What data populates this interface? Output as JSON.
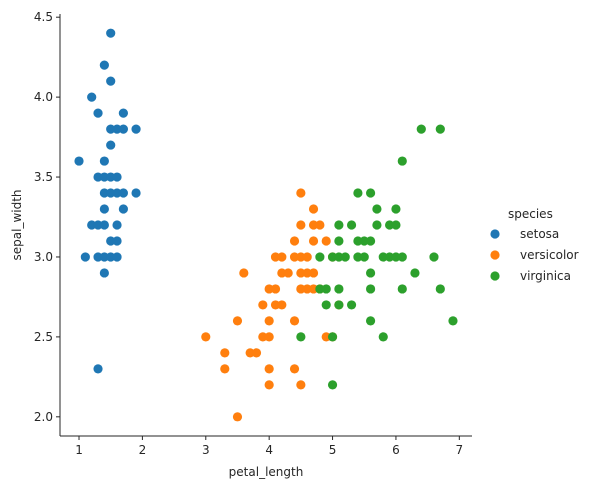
{
  "chart_data": {
    "type": "scatter",
    "xlabel": "petal_length",
    "ylabel": "sepal_width",
    "xlim": [
      0.7,
      7.2
    ],
    "ylim": [
      1.88,
      4.52
    ],
    "xticks": [
      1,
      2,
      3,
      4,
      5,
      6,
      7
    ],
    "yticks": [
      2.0,
      2.5,
      3.0,
      3.5,
      4.0,
      4.5
    ],
    "legend": {
      "title": "species",
      "position": "right"
    },
    "series": [
      {
        "name": "setosa",
        "color": "#1f77b4",
        "points": [
          [
            1.0,
            3.6
          ],
          [
            1.1,
            3.0
          ],
          [
            1.2,
            3.2
          ],
          [
            1.2,
            4.0
          ],
          [
            1.3,
            3.0
          ],
          [
            1.3,
            3.2
          ],
          [
            1.3,
            3.5
          ],
          [
            1.3,
            3.9
          ],
          [
            1.3,
            2.3
          ],
          [
            1.4,
            3.0
          ],
          [
            1.4,
            3.2
          ],
          [
            1.4,
            3.4
          ],
          [
            1.4,
            3.5
          ],
          [
            1.4,
            3.6
          ],
          [
            1.4,
            4.2
          ],
          [
            1.4,
            2.9
          ],
          [
            1.4,
            3.3
          ],
          [
            1.5,
            3.1
          ],
          [
            1.5,
            3.4
          ],
          [
            1.5,
            3.5
          ],
          [
            1.5,
            3.7
          ],
          [
            1.5,
            3.8
          ],
          [
            1.5,
            4.1
          ],
          [
            1.5,
            4.4
          ],
          [
            1.5,
            3.0
          ],
          [
            1.6,
            3.1
          ],
          [
            1.6,
            3.2
          ],
          [
            1.6,
            3.4
          ],
          [
            1.6,
            3.5
          ],
          [
            1.6,
            3.8
          ],
          [
            1.6,
            3.0
          ],
          [
            1.7,
            3.3
          ],
          [
            1.7,
            3.4
          ],
          [
            1.7,
            3.8
          ],
          [
            1.7,
            3.9
          ],
          [
            1.9,
            3.4
          ],
          [
            1.9,
            3.8
          ]
        ]
      },
      {
        "name": "versicolor",
        "color": "#ff7f0e",
        "points": [
          [
            3.0,
            2.5
          ],
          [
            3.3,
            2.3
          ],
          [
            3.3,
            2.4
          ],
          [
            3.5,
            2.0
          ],
          [
            3.5,
            2.6
          ],
          [
            3.6,
            2.9
          ],
          [
            3.7,
            2.4
          ],
          [
            3.8,
            2.4
          ],
          [
            3.9,
            2.5
          ],
          [
            3.9,
            2.7
          ],
          [
            4.0,
            2.2
          ],
          [
            4.0,
            2.3
          ],
          [
            4.0,
            2.5
          ],
          [
            4.0,
            2.6
          ],
          [
            4.0,
            2.8
          ],
          [
            4.1,
            2.7
          ],
          [
            4.1,
            2.8
          ],
          [
            4.1,
            3.0
          ],
          [
            4.2,
            2.7
          ],
          [
            4.2,
            2.9
          ],
          [
            4.2,
            3.0
          ],
          [
            4.3,
            2.9
          ],
          [
            4.4,
            2.3
          ],
          [
            4.4,
            2.6
          ],
          [
            4.4,
            3.0
          ],
          [
            4.4,
            3.1
          ],
          [
            4.5,
            2.2
          ],
          [
            4.5,
            2.8
          ],
          [
            4.5,
            2.9
          ],
          [
            4.5,
            3.0
          ],
          [
            4.5,
            3.2
          ],
          [
            4.5,
            3.4
          ],
          [
            4.6,
            2.8
          ],
          [
            4.6,
            2.9
          ],
          [
            4.6,
            3.0
          ],
          [
            4.7,
            2.8
          ],
          [
            4.7,
            2.9
          ],
          [
            4.7,
            3.1
          ],
          [
            4.7,
            3.2
          ],
          [
            4.7,
            3.3
          ],
          [
            4.8,
            2.8
          ],
          [
            4.8,
            3.2
          ],
          [
            4.9,
            2.5
          ],
          [
            4.9,
            3.1
          ],
          [
            5.0,
            2.5
          ],
          [
            5.0,
            3.0
          ],
          [
            5.1,
            2.7
          ]
        ]
      },
      {
        "name": "virginica",
        "color": "#2ca02c",
        "points": [
          [
            4.5,
            2.5
          ],
          [
            4.8,
            2.8
          ],
          [
            4.8,
            3.0
          ],
          [
            4.9,
            2.7
          ],
          [
            4.9,
            2.8
          ],
          [
            5.0,
            2.2
          ],
          [
            5.0,
            2.5
          ],
          [
            5.0,
            3.0
          ],
          [
            5.1,
            2.7
          ],
          [
            5.1,
            2.8
          ],
          [
            5.1,
            3.0
          ],
          [
            5.1,
            3.1
          ],
          [
            5.1,
            3.2
          ],
          [
            5.2,
            3.0
          ],
          [
            5.3,
            2.7
          ],
          [
            5.3,
            3.2
          ],
          [
            5.4,
            3.0
          ],
          [
            5.4,
            3.1
          ],
          [
            5.4,
            3.4
          ],
          [
            5.5,
            3.0
          ],
          [
            5.5,
            3.1
          ],
          [
            5.6,
            2.6
          ],
          [
            5.6,
            2.8
          ],
          [
            5.6,
            2.9
          ],
          [
            5.6,
            3.1
          ],
          [
            5.6,
            3.4
          ],
          [
            5.7,
            3.2
          ],
          [
            5.7,
            3.3
          ],
          [
            5.8,
            2.5
          ],
          [
            5.8,
            3.0
          ],
          [
            5.9,
            3.0
          ],
          [
            5.9,
            3.2
          ],
          [
            6.0,
            3.0
          ],
          [
            6.0,
            3.2
          ],
          [
            6.0,
            3.3
          ],
          [
            6.1,
            2.8
          ],
          [
            6.1,
            3.0
          ],
          [
            6.1,
            3.6
          ],
          [
            6.3,
            2.9
          ],
          [
            6.4,
            3.8
          ],
          [
            6.6,
            3.0
          ],
          [
            6.7,
            2.8
          ],
          [
            6.7,
            3.8
          ],
          [
            6.9,
            2.6
          ]
        ]
      }
    ]
  }
}
